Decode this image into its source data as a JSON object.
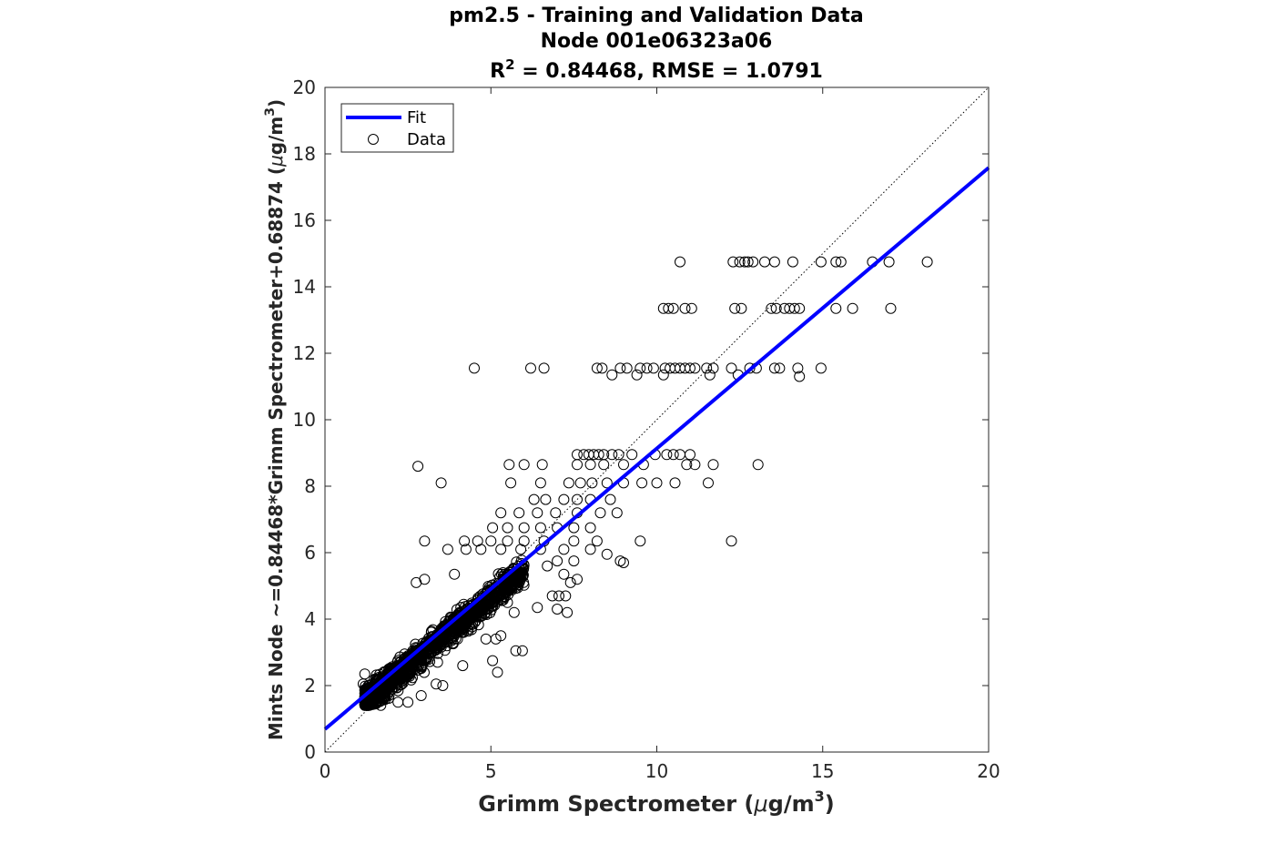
{
  "chart_data": {
    "type": "scatter",
    "title": "pm2.5 - Training and Validation Data",
    "subtitle": "Node 001e06323a06",
    "metrics_line": {
      "r_prefix": "R",
      "r_sup": "2",
      "rest": " = 0.84468, RMSE = 1.0791"
    },
    "xlabel": {
      "main": "Grimm Spectrometer (",
      "mu": "μ",
      "unit": "g/m",
      "sup": "3",
      "close": ")"
    },
    "ylabel": {
      "main": "Mints Node ~=0.84468*Grimm Spectrometer+0.68874 (",
      "mu": "μ",
      "unit": "g/m",
      "sup": "3",
      "close": ")"
    },
    "xlim": [
      0,
      20
    ],
    "ylim": [
      0,
      20
    ],
    "xticks": [
      0,
      5,
      10,
      15,
      20
    ],
    "yticks": [
      0,
      2,
      4,
      6,
      8,
      10,
      12,
      14,
      16,
      18,
      20
    ],
    "grid": false,
    "legend": {
      "placement": "top-left",
      "fit_label": "Fit",
      "data_label": "Data"
    },
    "fit": {
      "slope": 0.84468,
      "intercept": 0.68874,
      "color": "#0000ff"
    },
    "identity_line": {
      "style": "dotted",
      "color": "#000000"
    },
    "marker_color": "#000000",
    "series": [
      {
        "name": "Data",
        "points": [
          [
            2.8,
            8.6
          ],
          [
            3.5,
            8.1
          ],
          [
            3.0,
            6.35
          ],
          [
            4.5,
            11.55
          ],
          [
            6.2,
            11.55
          ],
          [
            6.6,
            11.55
          ],
          [
            10.7,
            14.75
          ],
          [
            12.3,
            14.75
          ],
          [
            12.5,
            14.75
          ],
          [
            12.65,
            14.75
          ],
          [
            12.75,
            14.75
          ],
          [
            12.9,
            14.75
          ],
          [
            13.25,
            14.75
          ],
          [
            13.55,
            14.75
          ],
          [
            14.1,
            14.75
          ],
          [
            14.95,
            14.75
          ],
          [
            15.4,
            14.75
          ],
          [
            15.55,
            14.75
          ],
          [
            16.5,
            14.75
          ],
          [
            17.0,
            14.75
          ],
          [
            18.15,
            14.75
          ],
          [
            10.2,
            13.35
          ],
          [
            10.35,
            13.35
          ],
          [
            10.5,
            13.35
          ],
          [
            10.85,
            13.35
          ],
          [
            11.05,
            13.35
          ],
          [
            12.35,
            13.35
          ],
          [
            12.55,
            13.35
          ],
          [
            13.45,
            13.35
          ],
          [
            13.6,
            13.35
          ],
          [
            13.85,
            13.35
          ],
          [
            14.0,
            13.35
          ],
          [
            14.15,
            13.35
          ],
          [
            14.3,
            13.35
          ],
          [
            15.4,
            13.35
          ],
          [
            15.9,
            13.35
          ],
          [
            17.05,
            13.35
          ],
          [
            8.2,
            11.55
          ],
          [
            8.35,
            11.55
          ],
          [
            8.9,
            11.55
          ],
          [
            9.1,
            11.55
          ],
          [
            9.5,
            11.55
          ],
          [
            9.7,
            11.55
          ],
          [
            9.9,
            11.55
          ],
          [
            10.25,
            11.55
          ],
          [
            10.4,
            11.55
          ],
          [
            10.55,
            11.55
          ],
          [
            10.7,
            11.55
          ],
          [
            10.85,
            11.55
          ],
          [
            11.0,
            11.55
          ],
          [
            11.15,
            11.55
          ],
          [
            11.5,
            11.55
          ],
          [
            11.7,
            11.55
          ],
          [
            12.25,
            11.55
          ],
          [
            12.8,
            11.55
          ],
          [
            13.0,
            11.55
          ],
          [
            13.55,
            11.55
          ],
          [
            13.7,
            11.55
          ],
          [
            14.25,
            11.55
          ],
          [
            14.95,
            11.55
          ],
          [
            8.65,
            11.35
          ],
          [
            9.4,
            11.35
          ],
          [
            10.2,
            11.35
          ],
          [
            11.6,
            11.35
          ],
          [
            12.45,
            11.35
          ],
          [
            14.3,
            11.3
          ],
          [
            7.6,
            8.95
          ],
          [
            7.8,
            8.95
          ],
          [
            7.95,
            8.95
          ],
          [
            8.1,
            8.95
          ],
          [
            8.25,
            8.95
          ],
          [
            8.4,
            8.95
          ],
          [
            8.65,
            8.95
          ],
          [
            8.85,
            8.95
          ],
          [
            9.25,
            8.95
          ],
          [
            9.95,
            8.95
          ],
          [
            10.3,
            8.95
          ],
          [
            10.5,
            8.95
          ],
          [
            10.7,
            8.95
          ],
          [
            11.0,
            8.95
          ],
          [
            5.55,
            8.65
          ],
          [
            6.0,
            8.65
          ],
          [
            6.55,
            8.65
          ],
          [
            7.6,
            8.65
          ],
          [
            8.0,
            8.65
          ],
          [
            8.4,
            8.65
          ],
          [
            9.0,
            8.65
          ],
          [
            9.6,
            8.65
          ],
          [
            10.9,
            8.65
          ],
          [
            11.15,
            8.65
          ],
          [
            11.7,
            8.65
          ],
          [
            13.05,
            8.65
          ],
          [
            5.6,
            8.1
          ],
          [
            6.5,
            8.1
          ],
          [
            7.35,
            8.1
          ],
          [
            7.7,
            8.1
          ],
          [
            8.05,
            8.1
          ],
          [
            8.5,
            8.1
          ],
          [
            9.0,
            8.1
          ],
          [
            9.55,
            8.1
          ],
          [
            10.0,
            8.1
          ],
          [
            10.55,
            8.1
          ],
          [
            11.55,
            8.1
          ],
          [
            6.3,
            7.6
          ],
          [
            6.65,
            7.6
          ],
          [
            7.2,
            7.6
          ],
          [
            7.6,
            7.6
          ],
          [
            8.0,
            7.6
          ],
          [
            8.6,
            7.6
          ],
          [
            5.3,
            7.2
          ],
          [
            5.85,
            7.2
          ],
          [
            6.4,
            7.2
          ],
          [
            6.95,
            7.2
          ],
          [
            7.6,
            7.2
          ],
          [
            8.3,
            7.2
          ],
          [
            8.8,
            7.2
          ],
          [
            5.05,
            6.75
          ],
          [
            5.5,
            6.75
          ],
          [
            6.0,
            6.75
          ],
          [
            6.5,
            6.75
          ],
          [
            7.0,
            6.75
          ],
          [
            7.5,
            6.75
          ],
          [
            8.0,
            6.75
          ],
          [
            4.2,
            6.35
          ],
          [
            4.6,
            6.35
          ],
          [
            5.0,
            6.35
          ],
          [
            5.5,
            6.35
          ],
          [
            6.0,
            6.35
          ],
          [
            6.6,
            6.35
          ],
          [
            7.5,
            6.35
          ],
          [
            8.2,
            6.35
          ],
          [
            9.5,
            6.35
          ],
          [
            12.25,
            6.35
          ],
          [
            3.7,
            6.1
          ],
          [
            4.25,
            6.1
          ],
          [
            4.7,
            6.1
          ],
          [
            5.3,
            6.1
          ],
          [
            5.9,
            6.1
          ],
          [
            6.5,
            6.1
          ],
          [
            7.2,
            6.1
          ],
          [
            8.0,
            6.1
          ],
          [
            8.5,
            5.95
          ],
          [
            7.0,
            5.75
          ],
          [
            7.5,
            5.75
          ],
          [
            8.9,
            5.75
          ],
          [
            9.0,
            5.7
          ],
          [
            6.7,
            5.6
          ],
          [
            7.2,
            5.35
          ],
          [
            7.6,
            5.2
          ],
          [
            7.4,
            5.1
          ],
          [
            6.85,
            4.7
          ],
          [
            7.05,
            4.7
          ],
          [
            7.25,
            4.7
          ],
          [
            6.4,
            4.35
          ],
          [
            7.0,
            4.3
          ],
          [
            7.3,
            4.2
          ],
          [
            5.1,
            4.65
          ],
          [
            5.5,
            4.5
          ],
          [
            5.7,
            4.2
          ],
          [
            5.3,
            3.5
          ],
          [
            5.15,
            3.4
          ],
          [
            4.85,
            3.4
          ],
          [
            5.75,
            3.05
          ],
          [
            5.95,
            3.05
          ],
          [
            5.05,
            2.75
          ],
          [
            5.2,
            2.4
          ],
          [
            4.15,
            2.6
          ],
          [
            3.55,
            2.0
          ],
          [
            3.35,
            2.05
          ],
          [
            1.2,
            2.35
          ],
          [
            1.15,
            2.05
          ],
          [
            1.35,
            1.65
          ],
          [
            2.5,
            1.5
          ],
          [
            2.2,
            1.5
          ],
          [
            2.9,
            1.7
          ],
          [
            2.75,
            5.1
          ],
          [
            3.0,
            5.2
          ],
          [
            3.9,
            5.35
          ]
        ]
      }
    ]
  }
}
